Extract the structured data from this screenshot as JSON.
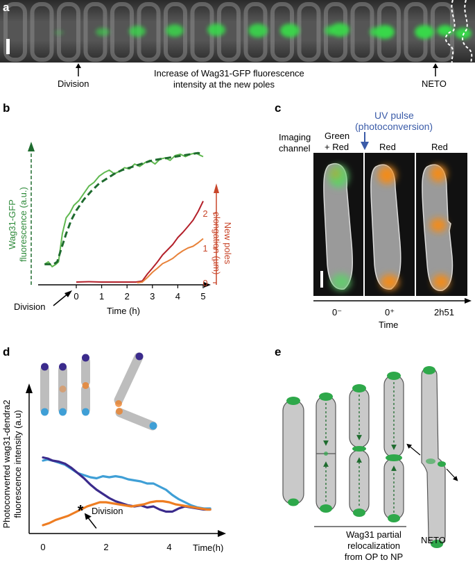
{
  "panels": {
    "a": {
      "label": "a",
      "annotations": {
        "division": "Division",
        "increase_line1": "Increase of Wag31-GFP fluorescence",
        "increase_line2": "intensity at the new poles",
        "neto": "NETO"
      },
      "colors": {
        "strip_bg": "#3a3a3a",
        "gfp": "#38d84a"
      }
    },
    "b": {
      "label": "b",
      "chart_data": {
        "type": "line",
        "xlabel": "Time (h)",
        "x_ticks": [
          "0",
          "1",
          "2",
          "3",
          "4",
          "5"
        ],
        "xlim": [
          -1.3,
          5.4
        ],
        "left_axis_label_line1": "Wag31-GFP",
        "left_axis_label_line2": "fluorescence (a.u.)",
        "right_axis_label_line1": "New poles",
        "right_axis_label_line2": "elongation (µm)",
        "right_ticks": [
          "0",
          "1",
          "2"
        ],
        "right_ylim": [
          0,
          2.8
        ],
        "division_label": "Division",
        "series": [
          {
            "name": "Wag31-GFP fluorescence (raw)",
            "color": "#5fb84f",
            "axis": "left",
            "x": [
              -1.25,
              -1.1,
              -0.95,
              -0.8,
              -0.7,
              -0.55,
              -0.4,
              -0.25,
              -0.1,
              0.1,
              0.3,
              0.5,
              0.7,
              0.9,
              1.1,
              1.3,
              1.5,
              1.7,
              1.9,
              2.1,
              2.3,
              2.5,
              2.7,
              2.9,
              3.1,
              3.3,
              3.5,
              3.7,
              3.9,
              4.1,
              4.3,
              4.5,
              4.7,
              4.9,
              5.0
            ],
            "y": [
              0.1,
              0.12,
              0.08,
              0.1,
              0.12,
              0.35,
              0.48,
              0.52,
              0.58,
              0.62,
              0.68,
              0.74,
              0.77,
              0.82,
              0.85,
              0.87,
              0.84,
              0.86,
              0.89,
              0.88,
              0.92,
              0.9,
              0.93,
              0.95,
              0.92,
              0.96,
              0.97,
              0.95,
              0.99,
              1.0,
              0.98,
              1.0,
              1.01,
              0.99,
              0.98
            ]
          },
          {
            "name": "Wag31-GFP fluorescence (fit)",
            "color": "#1e6b2e",
            "axis": "left",
            "dashed": true,
            "x": [
              -1.25,
              -0.9,
              -0.75,
              -0.6,
              -0.4,
              -0.2,
              0.0,
              0.3,
              0.6,
              0.9,
              1.2,
              1.5,
              1.8,
              2.1,
              2.4,
              2.7,
              3.0,
              3.3,
              3.6,
              3.9,
              4.2,
              4.5,
              4.8,
              5.0
            ],
            "y": [
              0.1,
              0.1,
              0.12,
              0.22,
              0.35,
              0.46,
              0.54,
              0.63,
              0.7,
              0.76,
              0.8,
              0.84,
              0.87,
              0.89,
              0.91,
              0.93,
              0.95,
              0.96,
              0.97,
              0.98,
              0.99,
              1.0,
              1.01,
              1.0
            ]
          },
          {
            "name": "New pole 1 elongation",
            "color": "#b3202a",
            "axis": "right",
            "x": [
              0,
              0.5,
              1,
              1.5,
              2,
              2.35,
              2.6,
              2.8,
              3.0,
              3.2,
              3.4,
              3.6,
              3.8,
              4.0,
              4.2,
              4.4,
              4.6,
              4.8,
              5.0
            ],
            "y": [
              0.02,
              0.03,
              0.02,
              0.02,
              0.02,
              0.02,
              0.05,
              0.25,
              0.42,
              0.6,
              0.8,
              0.95,
              1.1,
              1.3,
              1.45,
              1.62,
              1.8,
              2.05,
              2.35
            ]
          },
          {
            "name": "New pole 2 elongation",
            "color": "#e8823a",
            "axis": "right",
            "x": [
              2.4,
              2.6,
              2.8,
              3.0,
              3.2,
              3.4,
              3.6,
              3.8,
              4.0,
              4.2,
              4.4,
              4.6,
              4.8,
              5.0
            ],
            "y": [
              0.0,
              0.02,
              0.15,
              0.3,
              0.42,
              0.55,
              0.62,
              0.7,
              0.82,
              0.92,
              1.0,
              1.05,
              1.15,
              1.27
            ]
          }
        ]
      }
    },
    "c": {
      "label": "c",
      "uv_line1": "UV pulse",
      "uv_line2": "(photoconversion)",
      "imaging_line1": "Imaging",
      "imaging_line2": "channel",
      "channels": [
        "Green\n+ Red",
        "Red",
        "Red"
      ],
      "channel_green_top": "Green",
      "channel_green_bottom": "+ Red",
      "channel_red_1": "Red",
      "channel_red_2": "Red",
      "times": [
        "0⁻",
        "0⁺",
        "2h51"
      ],
      "time_label": "Time",
      "colors": {
        "uv": "#3a5ba8",
        "orange": "#f08c1e"
      }
    },
    "d": {
      "label": "d",
      "chart_data": {
        "type": "line",
        "ylabel_line1": "Photoconverted wag31-dendra2",
        "ylabel_line2": "fluorescence intensity (a.u)",
        "xlabel": "Time(h)",
        "x_ticks": [
          "0",
          "2",
          "4"
        ],
        "xlim": [
          -0.2,
          5.8
        ],
        "ylim": [
          0,
          1.0
        ],
        "division_label": "Division",
        "series": [
          {
            "name": "Old pole 1",
            "color": "#3f9fd6",
            "x": [
              0,
              0.15,
              0.3,
              0.5,
              0.7,
              0.9,
              1.1,
              1.3,
              1.5,
              1.7,
              1.9,
              2.1,
              2.3,
              2.5,
              2.7,
              2.9,
              3.1,
              3.3,
              3.5,
              3.7,
              3.9,
              4.1,
              4.3,
              4.5,
              4.7,
              4.9,
              5.1,
              5.3
            ],
            "y": [
              0.7,
              0.71,
              0.7,
              0.68,
              0.66,
              0.62,
              0.58,
              0.56,
              0.54,
              0.53,
              0.55,
              0.54,
              0.55,
              0.54,
              0.52,
              0.51,
              0.5,
              0.48,
              0.48,
              0.45,
              0.42,
              0.37,
              0.33,
              0.3,
              0.27,
              0.25,
              0.24,
              0.24
            ]
          },
          {
            "name": "Old pole 2",
            "color": "#3b2b8c",
            "x": [
              0,
              0.15,
              0.3,
              0.5,
              0.7,
              0.9,
              1.1,
              1.3,
              1.5,
              1.7,
              1.9,
              2.1,
              2.3,
              2.5,
              2.7,
              2.9,
              3.1,
              3.3,
              3.5,
              3.7,
              3.9,
              4.1,
              4.3,
              4.5,
              4.7,
              4.9,
              5.1,
              5.3
            ],
            "y": [
              0.73,
              0.72,
              0.7,
              0.69,
              0.67,
              0.63,
              0.58,
              0.53,
              0.47,
              0.42,
              0.38,
              0.34,
              0.31,
              0.29,
              0.27,
              0.26,
              0.27,
              0.25,
              0.26,
              0.23,
              0.21,
              0.21,
              0.24,
              0.26,
              0.25,
              0.24,
              0.23,
              0.23
            ]
          },
          {
            "name": "New pole",
            "color": "#ee7d22",
            "x": [
              0,
              0.2,
              0.4,
              0.6,
              0.8,
              1.0,
              1.2,
              1.4,
              1.6,
              1.8,
              2.0,
              2.2,
              2.4,
              2.6,
              2.8,
              3.0,
              3.2,
              3.4,
              3.6,
              3.8,
              4.0,
              4.2,
              4.4,
              4.6,
              4.8,
              5.0,
              5.2,
              5.3
            ],
            "y": [
              0.08,
              0.1,
              0.13,
              0.15,
              0.17,
              0.2,
              0.23,
              0.26,
              0.28,
              0.3,
              0.3,
              0.29,
              0.28,
              0.27,
              0.26,
              0.27,
              0.28,
              0.3,
              0.31,
              0.31,
              0.3,
              0.28,
              0.27,
              0.26,
              0.25,
              0.24,
              0.23,
              0.23
            ]
          }
        ],
        "division_marker": {
          "x": 1.25,
          "y": 0.25,
          "symbol": "*"
        }
      }
    },
    "e": {
      "label": "e",
      "bracket_line1": "Wag31 partial",
      "bracket_line2": "relocalization",
      "bracket_line3": "from OP to NP",
      "neto": "NETO",
      "colors": {
        "cell": "#c9c9c9",
        "wag31": "#2ea84a",
        "arrow": "#1e6b2e"
      }
    }
  }
}
